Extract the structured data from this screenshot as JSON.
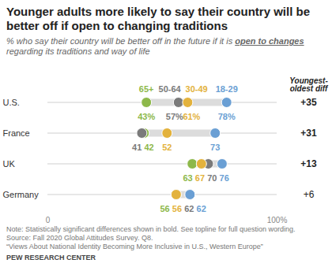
{
  "chart_data": {
    "type": "dot",
    "orientation": "horizontal",
    "title": "Younger adults more likely to say their country will be better off if open to changing traditions",
    "subtitle": "% who say their country will be better off in the future if it is open to changes regarding its traditions and way of life",
    "subtitle_emphasis": "open to changes",
    "categories": [
      "U.S.",
      "France",
      "UK",
      "Germany"
    ],
    "series": [
      {
        "name": "65+",
        "color": "#8db84a",
        "values": [
          43,
          42,
          63,
          56
        ],
        "value_labels": [
          "43%",
          "42",
          "63",
          "56"
        ]
      },
      {
        "name": "50-64",
        "color": "#7a7a7a",
        "values": [
          57,
          41,
          70,
          62
        ],
        "value_labels": [
          "57%",
          "41",
          "70",
          "62"
        ]
      },
      {
        "name": "30-49",
        "color": "#e3b23c",
        "values": [
          61,
          52,
          67,
          56
        ],
        "value_labels": [
          "61%",
          "52",
          "67",
          "56"
        ]
      },
      {
        "name": "18-29",
        "color": "#6a9fd4",
        "values": [
          78,
          73,
          76,
          62
        ],
        "value_labels": [
          "78%",
          "73",
          "76",
          "62"
        ]
      }
    ],
    "xlim": [
      0,
      100
    ],
    "xticks": [
      0,
      {
        "value": 100,
        "label": "100%"
      }
    ],
    "grid": false,
    "data_labels": true,
    "diff_header": "Youngest-oldest diff",
    "diff_values": [
      35,
      31,
      13,
      6
    ],
    "diff_labels": [
      "+35",
      "+31",
      "+13",
      "+6"
    ],
    "diff_bold": [
      true,
      true,
      true,
      false
    ],
    "notes": [
      "Note: Statistically significant differences shown in bold. See topline for full question wording.",
      "Source: Fall 2020 Global Attitudes Survey. Q8.",
      "“Views About National Identity Becoming More Inclusive in U.S., Western Europe”",
      "PEW RESEARCH CENTER"
    ]
  }
}
